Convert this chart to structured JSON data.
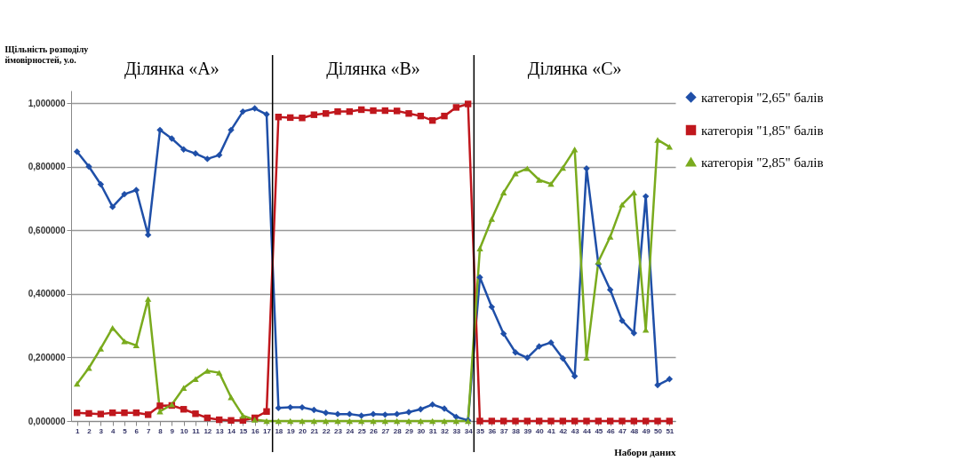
{
  "chart_data": {
    "type": "line",
    "ylabel": "Щільність розподілу ймовірностей, у.о.",
    "xlabel": "Набори даних",
    "annotations": [
      "Ділянка «А»",
      "Ділянка «В»",
      "Ділянка «С»"
    ],
    "x": [
      1,
      2,
      3,
      4,
      5,
      6,
      7,
      8,
      9,
      10,
      11,
      12,
      13,
      14,
      15,
      16,
      17,
      18,
      19,
      20,
      21,
      22,
      23,
      24,
      25,
      26,
      27,
      28,
      29,
      30,
      31,
      32,
      33,
      34,
      35,
      36,
      37,
      38,
      39,
      40,
      41,
      42,
      43,
      44,
      45,
      46,
      47,
      48,
      49,
      50,
      51
    ],
    "xlim": [
      0.5,
      51.5
    ],
    "xticks": [
      1,
      2,
      3,
      4,
      5,
      6,
      7,
      8,
      9,
      10,
      11,
      12,
      13,
      14,
      15,
      16,
      17,
      18,
      19,
      20,
      21,
      22,
      23,
      24,
      25,
      26,
      27,
      28,
      29,
      30,
      31,
      32,
      33,
      34,
      35,
      36,
      37,
      38,
      39,
      40,
      41,
      42,
      43,
      44,
      45,
      46,
      47,
      48,
      49,
      50,
      51
    ],
    "ylim": [
      0,
      1.04
    ],
    "yticks": [
      {
        "value": 0,
        "label": "0,000000"
      },
      {
        "value": 0.2,
        "label": "0,200000"
      },
      {
        "value": 0.4,
        "label": "0,400000"
      },
      {
        "value": 0.6,
        "label": "0,600000"
      },
      {
        "value": 0.8,
        "label": "0,800000"
      },
      {
        "value": 1.0,
        "label": "1,000000"
      }
    ],
    "grid": "y",
    "legend": "right",
    "line_style": "solid",
    "ref_lines": [
      {
        "axis": "x",
        "value": 17.5,
        "color": "#000000"
      },
      {
        "axis": "x",
        "value": 34.5,
        "color": "#000000"
      }
    ],
    "series": [
      {
        "name": "категорія  \"2,65\" балів",
        "color": "#1f4fa8",
        "marker": "diamond",
        "values": [
          0.848,
          0.801,
          0.745,
          0.674,
          0.714,
          0.727,
          0.586,
          0.916,
          0.889,
          0.855,
          0.842,
          0.825,
          0.837,
          0.916,
          0.974,
          0.984,
          0.965,
          0.041,
          0.043,
          0.043,
          0.035,
          0.026,
          0.022,
          0.022,
          0.017,
          0.022,
          0.02,
          0.022,
          0.028,
          0.037,
          0.052,
          0.039,
          0.013,
          0.002,
          0.452,
          0.359,
          0.275,
          0.216,
          0.199,
          0.235,
          0.247,
          0.197,
          0.141,
          0.795,
          0.494,
          0.413,
          0.316,
          0.277,
          0.707,
          0.113,
          0.132
        ]
      },
      {
        "name": "категорія \"1,85\" балів",
        "color": "#c0171d",
        "marker": "square",
        "values": [
          0.026,
          0.024,
          0.022,
          0.026,
          0.026,
          0.026,
          0.02,
          0.048,
          0.049,
          0.037,
          0.023,
          0.01,
          0.004,
          0.002,
          0.002,
          0.01,
          0.03,
          0.957,
          0.955,
          0.954,
          0.964,
          0.968,
          0.974,
          0.974,
          0.98,
          0.977,
          0.977,
          0.976,
          0.968,
          0.96,
          0.946,
          0.96,
          0.987,
          0.998,
          0,
          0,
          0,
          0,
          0,
          0,
          0,
          0,
          0,
          0,
          0,
          0,
          0,
          0,
          0,
          0,
          0
        ]
      },
      {
        "name": "категорія \"2,85\" балів",
        "color": "#7aab1e",
        "marker": "triangle",
        "values": [
          0.117,
          0.167,
          0.228,
          0.293,
          0.251,
          0.238,
          0.384,
          0.03,
          0.052,
          0.104,
          0.132,
          0.158,
          0.152,
          0.075,
          0.017,
          0.004,
          0,
          0,
          0,
          0,
          0,
          0,
          0,
          0,
          0,
          0,
          0,
          0,
          0,
          0,
          0,
          0,
          0,
          0,
          0.543,
          0.636,
          0.719,
          0.779,
          0.795,
          0.759,
          0.746,
          0.797,
          0.855,
          0.199,
          0.502,
          0.58,
          0.681,
          0.719,
          0.287,
          0.885,
          0.863
        ]
      }
    ]
  }
}
